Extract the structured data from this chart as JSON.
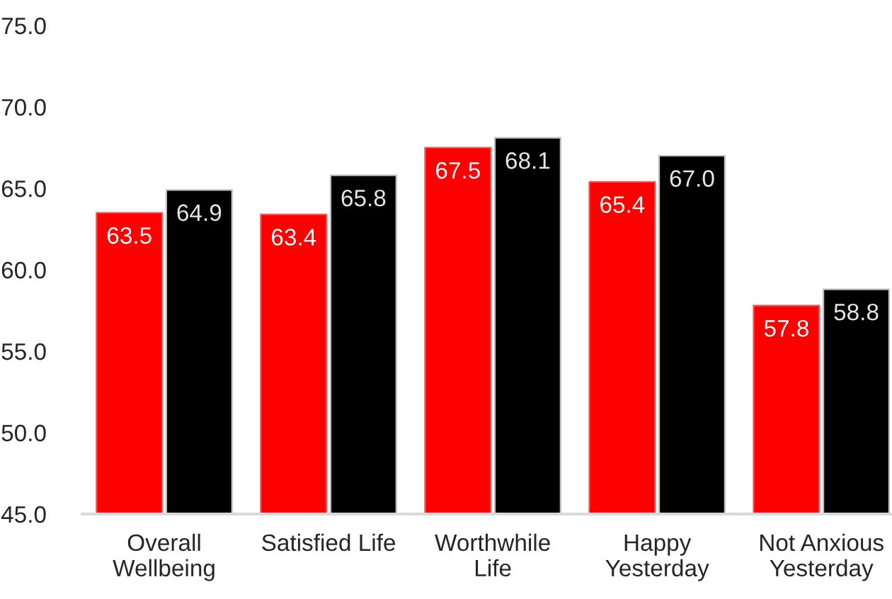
{
  "chart_data": {
    "type": "bar",
    "categories": [
      "Overall\nWellbeing",
      "Satisfied Life",
      "Worthwhile\nLife",
      "Happy\nYesterday",
      "Not Anxious\nYesterday"
    ],
    "series": [
      {
        "color": "#ff0000",
        "values": [
          63.5,
          63.4,
          67.5,
          65.4,
          57.8
        ],
        "value_labels": [
          "63.5",
          "63.4",
          "67.5",
          "65.4",
          "57.8"
        ]
      },
      {
        "color": "#000000",
        "values": [
          64.9,
          65.8,
          68.1,
          67.0,
          58.8
        ],
        "value_labels": [
          "64.9",
          "65.8",
          "68.1",
          "67.0",
          "58.8"
        ]
      }
    ],
    "ylim": [
      45,
      75
    ],
    "yticks": [
      {
        "value": 45,
        "label": "45.0"
      },
      {
        "value": 50,
        "label": "50.0"
      },
      {
        "value": 55,
        "label": "55.0"
      },
      {
        "value": 60,
        "label": "60.0"
      },
      {
        "value": 65,
        "label": "65.0"
      },
      {
        "value": 70,
        "label": "70.0"
      },
      {
        "value": 75,
        "label": "75.0"
      }
    ],
    "grid": false,
    "legend": false
  }
}
